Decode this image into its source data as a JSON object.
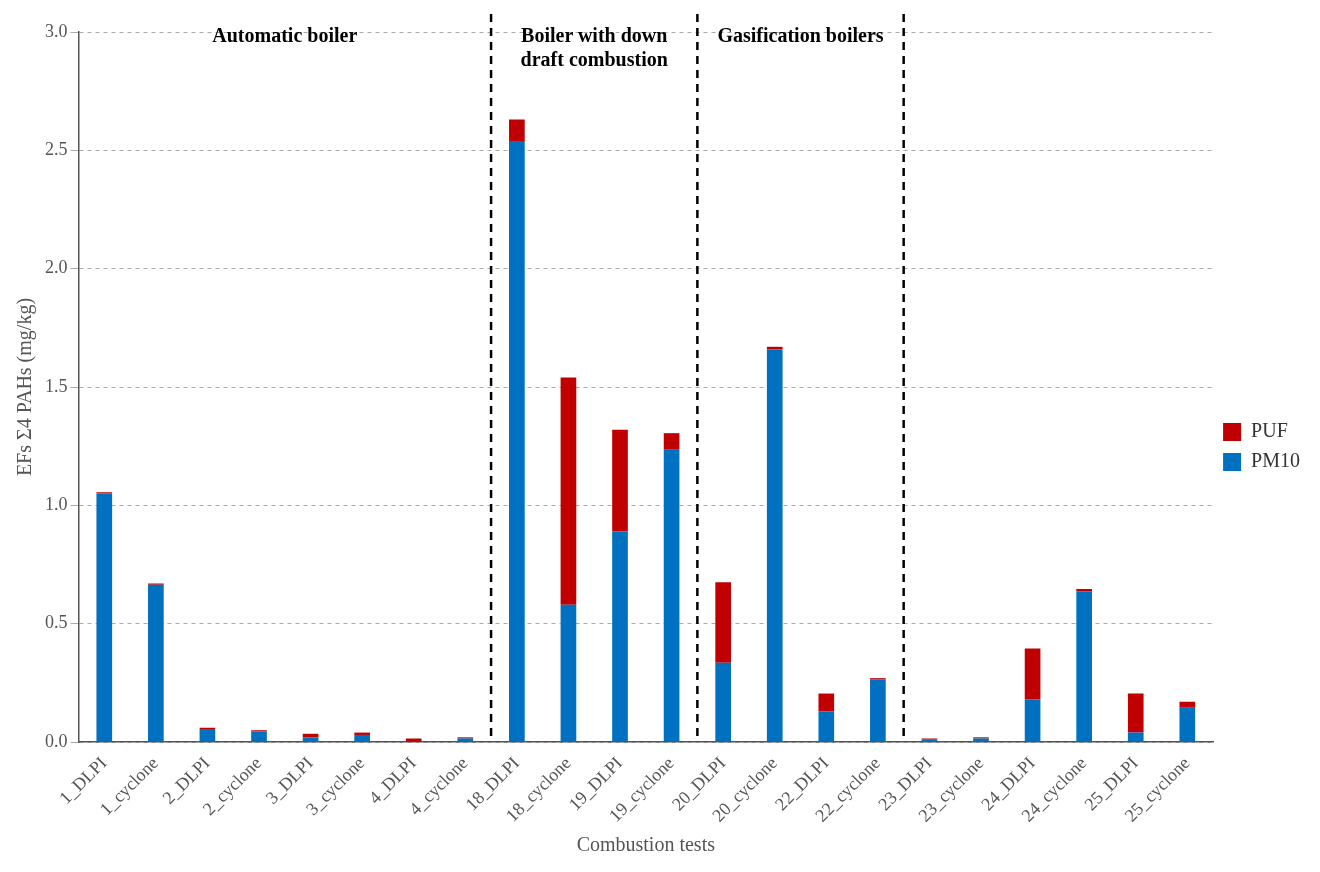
{
  "chart_data": {
    "type": "bar",
    "stacked": true,
    "xlabel": "Combustion tests",
    "ylabel": "EFs Σ4 PAHs (mg/kg)",
    "categories": [
      "1_DLPI",
      "1_cyclone",
      "2_DLPI",
      "2_cyclone",
      "3_DLPI",
      "3_cyclone",
      "4_DLPI",
      "4_cyclone",
      "18_DLPI",
      "18_cyclone",
      "19_DLPI",
      "19_cyclone",
      "20_DLPI",
      "20_cyclone",
      "22_DLPI",
      "22_cyclone",
      "23_DLPI",
      "23_cyclone",
      "24_DLPI",
      "24_cyclone",
      "25_DLPI",
      "25_cyclone"
    ],
    "series": [
      {
        "name": "PM10",
        "color": "#0070c0",
        "values": [
          1.05,
          0.665,
          0.055,
          0.045,
          0.02,
          0.03,
          0,
          0.015,
          2.54,
          0.58,
          0.89,
          1.235,
          0.335,
          1.66,
          0.13,
          0.265,
          0.01,
          0.015,
          0.18,
          0.637,
          0.04,
          0.145
        ]
      },
      {
        "name": "PUF",
        "color": "#c00000",
        "values": [
          0.005,
          0.005,
          0.005,
          0.005,
          0.015,
          0.01,
          0.015,
          0.005,
          0.09,
          0.96,
          0.43,
          0.07,
          0.34,
          0.01,
          0.075,
          0.005,
          0.005,
          0.005,
          0.215,
          0.01,
          0.165,
          0.025
        ]
      }
    ],
    "ylim": [
      0,
      3
    ],
    "yticks": [
      {
        "value": 0,
        "label": "0.0"
      },
      {
        "value": 0.5,
        "label": "0.5"
      },
      {
        "value": 1,
        "label": "1.0"
      },
      {
        "value": 1.5,
        "label": "1.5"
      },
      {
        "value": 2,
        "label": "2.0"
      },
      {
        "value": 2.5,
        "label": "2.5"
      },
      {
        "value": 3,
        "label": "3.0"
      }
    ],
    "grid": "y",
    "legend": "right",
    "annotations": [
      "Automatic boiler",
      "Boiler with down draft combustion",
      "Gasification boilers"
    ]
  }
}
